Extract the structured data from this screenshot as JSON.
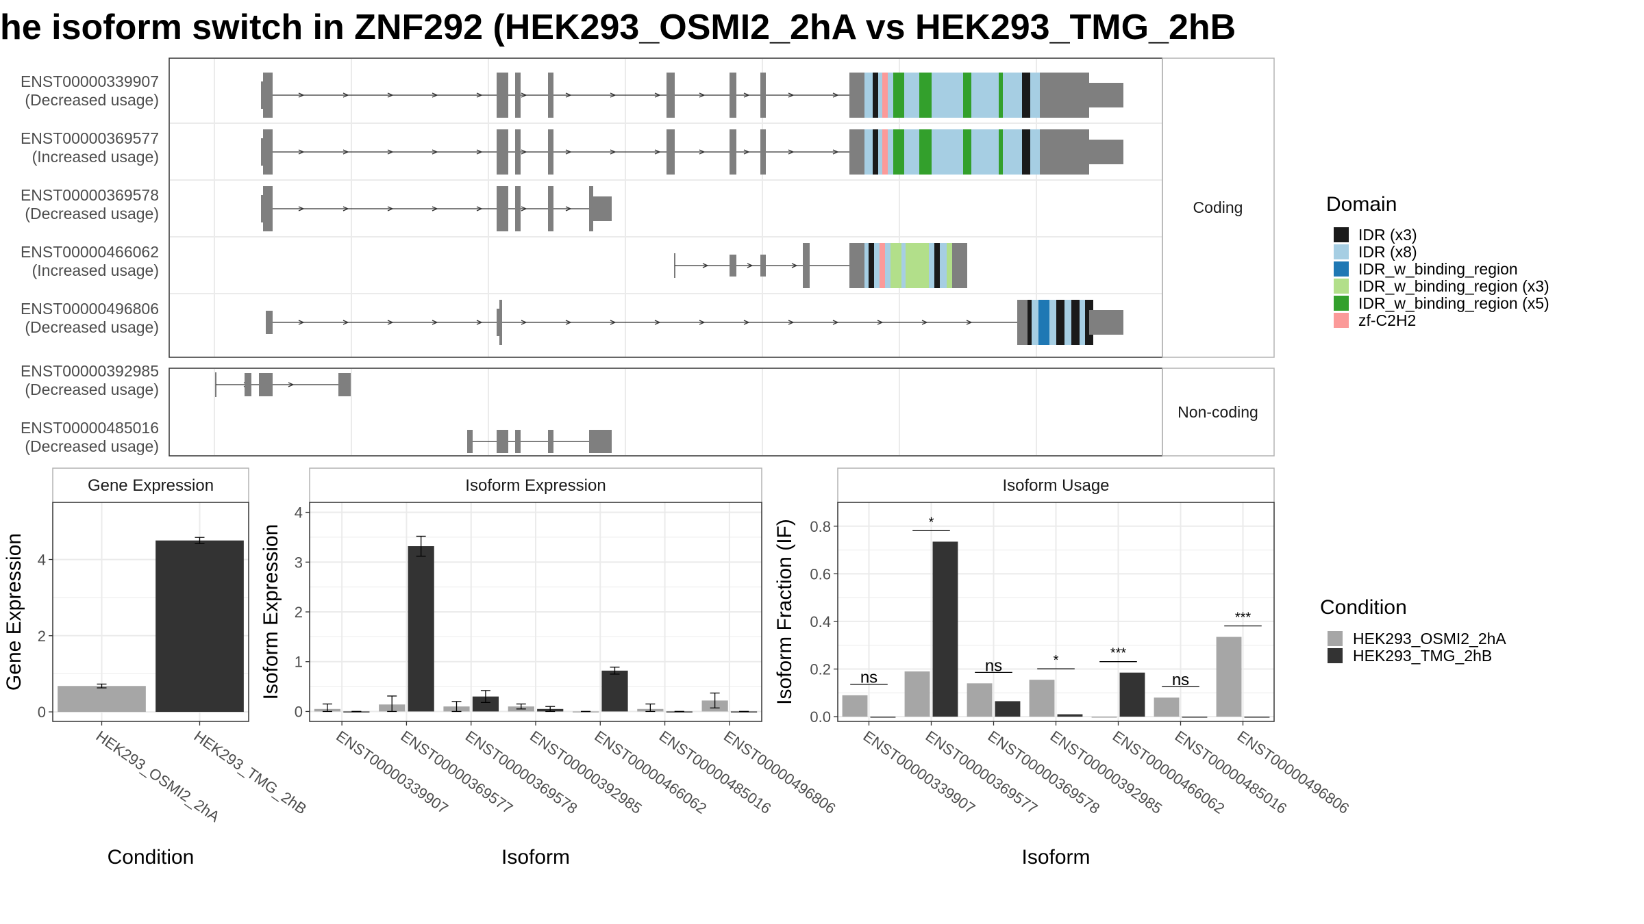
{
  "title": "he isoform switch in ZNF292 (HEK293_OSMI2_2hA vs HEK293_TMG_2hB",
  "colors": {
    "exon": "#7f7f7f",
    "panel_border": "#333333",
    "strip_border": "#b3b3b3",
    "grid": "#ebebeb",
    "cond_a": "#a6a6a6",
    "cond_b": "#333333",
    "IDR_x3": "#1a1a1a",
    "IDR_x8": "#a6cee3",
    "IDR_w_binding_region": "#1f78b4",
    "IDR_w_binding_region_x3": "#b2df8a",
    "IDR_w_binding_region_x5": "#33a02c",
    "zf_C2H2": "#fb9a99"
  },
  "structure": {
    "coding_strip": "Coding",
    "noncoding_strip": "Non-coding",
    "coding": [
      {
        "id": "ENST00000339907",
        "usage": "(Decreased usage)"
      },
      {
        "id": "ENST00000369577",
        "usage": "(Increased usage)"
      },
      {
        "id": "ENST00000369578",
        "usage": "(Decreased usage)"
      },
      {
        "id": "ENST00000466062",
        "usage": "(Increased usage)"
      },
      {
        "id": "ENST00000496806",
        "usage": "(Decreased usage)"
      }
    ],
    "noncoding": [
      {
        "id": "ENST00000392985",
        "usage": "(Decreased usage)"
      },
      {
        "id": "ENST00000485016",
        "usage": "(Decreased usage)"
      }
    ]
  },
  "legend_domain": {
    "title": "Domain",
    "items": [
      {
        "label": "IDR (x3)",
        "color": "#1a1a1a"
      },
      {
        "label": "IDR (x8)",
        "color": "#a6cee3"
      },
      {
        "label": "IDR_w_binding_region",
        "color": "#1f78b4"
      },
      {
        "label": "IDR_w_binding_region (x3)",
        "color": "#b2df8a"
      },
      {
        "label": "IDR_w_binding_region (x5)",
        "color": "#33a02c"
      },
      {
        "label": "zf-C2H2",
        "color": "#fb9a99"
      }
    ]
  },
  "legend_condition": {
    "title": "Condition",
    "items": [
      {
        "label": "HEK293_OSMI2_2hA",
        "color": "#a6a6a6"
      },
      {
        "label": "HEK293_TMG_2hB",
        "color": "#333333"
      }
    ]
  },
  "chart_data": [
    {
      "type": "bar",
      "title": "Gene Expression",
      "xlabel": "Condition",
      "ylabel": "Gene Expression",
      "ylim": [
        -0.25,
        5.5
      ],
      "yticks": [
        0,
        2,
        4
      ],
      "categories": [
        "HEK293_OSMI2_2hA",
        "HEK293_TMG_2hB"
      ],
      "values": [
        0.68,
        4.5
      ],
      "errors": [
        0.05,
        0.08
      ]
    },
    {
      "type": "bar",
      "title": "Isoform Expression",
      "xlabel": "Isoform",
      "ylabel": "Isoform Expression",
      "ylim": [
        -0.2,
        4.2
      ],
      "yticks": [
        0,
        1,
        2,
        3,
        4
      ],
      "categories": [
        "ENST00000339907",
        "ENST00000369577",
        "ENST00000369578",
        "ENST00000392985",
        "ENST00000466062",
        "ENST00000485016",
        "ENST00000496806"
      ],
      "series": [
        {
          "name": "HEK293_OSMI2_2hA",
          "values": [
            0.05,
            0.14,
            0.1,
            0.1,
            0.0,
            0.05,
            0.22
          ],
          "errors": [
            0.1,
            0.17,
            0.1,
            0.05,
            0.0,
            0.1,
            0.15
          ]
        },
        {
          "name": "HEK293_TMG_2hB",
          "values": [
            0.0,
            3.32,
            0.3,
            0.05,
            0.82,
            0.0,
            0.0
          ],
          "errors": [
            0.0,
            0.2,
            0.12,
            0.05,
            0.07,
            0.0,
            0.0
          ]
        }
      ]
    },
    {
      "type": "bar",
      "title": "Isoform Usage",
      "xlabel": "Isoform",
      "ylabel": "Isoform Fraction (IF)",
      "ylim": [
        -0.02,
        0.9
      ],
      "yticks": [
        0.0,
        0.2,
        0.4,
        0.6,
        0.8
      ],
      "categories": [
        "ENST00000339907",
        "ENST00000369577",
        "ENST00000369578",
        "ENST00000392985",
        "ENST00000466062",
        "ENST00000485016",
        "ENST00000496806"
      ],
      "series": [
        {
          "name": "HEK293_OSMI2_2hA",
          "values": [
            0.09,
            0.19,
            0.14,
            0.155,
            0.0,
            0.08,
            0.335
          ]
        },
        {
          "name": "HEK293_TMG_2hB",
          "values": [
            0.0,
            0.735,
            0.065,
            0.01,
            0.185,
            0.0,
            0.0
          ]
        }
      ],
      "significance": [
        "ns",
        "*",
        "ns",
        "*",
        "***",
        "ns",
        "***"
      ]
    }
  ]
}
